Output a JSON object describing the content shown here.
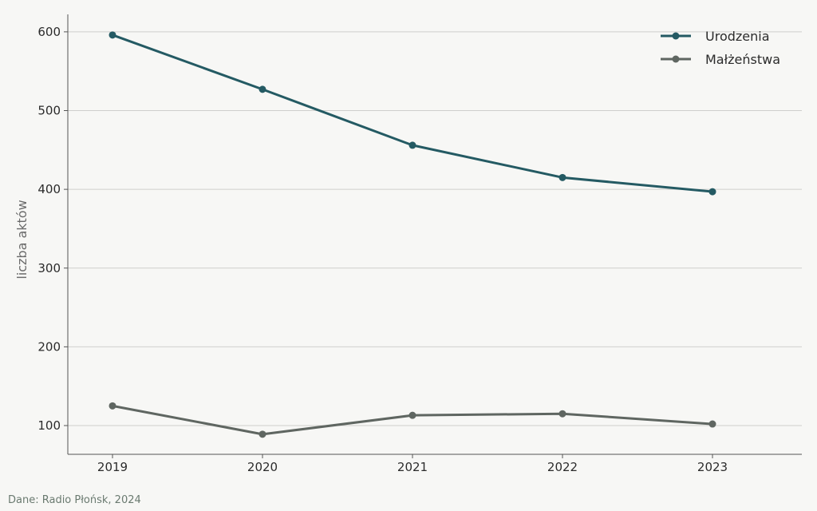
{
  "chart_data": {
    "type": "line",
    "x": [
      "2019",
      "2020",
      "2021",
      "2022",
      "2023"
    ],
    "series": [
      {
        "name": "Urodzenia",
        "values": [
          596,
          527,
          456,
          415,
          397
        ],
        "color": "#245a63"
      },
      {
        "name": "Małżeństwa",
        "values": [
          125,
          89,
          113,
          115,
          102
        ],
        "color": "#5f6661"
      }
    ],
    "ylabel": "liczba aktów",
    "yticks": [
      100,
      200,
      300,
      400,
      500,
      600
    ],
    "ylim": [
      64,
      624
    ],
    "grid": "horizontal",
    "legend": "top-right"
  },
  "source": "Dane: Radio Płońsk, 2024"
}
